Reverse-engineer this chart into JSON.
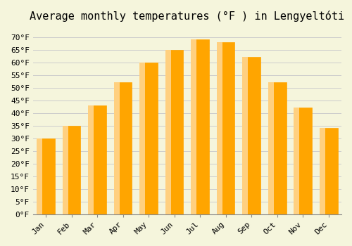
{
  "title": "Average monthly temperatures (°F ) in Lengyeltóti",
  "months": [
    "Jan",
    "Feb",
    "Mar",
    "Apr",
    "May",
    "Jun",
    "Jul",
    "Aug",
    "Sep",
    "Oct",
    "Nov",
    "Dec"
  ],
  "values": [
    30,
    35,
    43,
    52,
    60,
    65,
    69,
    68,
    62,
    52,
    42,
    34
  ],
  "bar_color": "#FFA500",
  "bar_edge_color": "#FFB733",
  "background_color": "#F5F5DC",
  "grid_color": "#CCCCCC",
  "ylim": [
    0,
    73
  ],
  "yticks": [
    0,
    5,
    10,
    15,
    20,
    25,
    30,
    35,
    40,
    45,
    50,
    55,
    60,
    65,
    70
  ],
  "title_fontsize": 11,
  "tick_fontsize": 8,
  "font_family": "monospace"
}
